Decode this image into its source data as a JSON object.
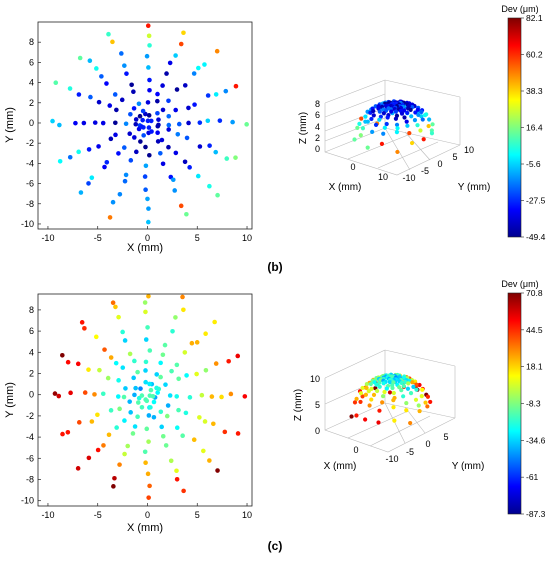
{
  "colors": {
    "jet": [
      "#00008f",
      "#0000ff",
      "#007fff",
      "#00ffff",
      "#7fff7f",
      "#ffff00",
      "#ff7f00",
      "#ff0000",
      "#7f0000"
    ]
  },
  "chart_data": [
    {
      "id": "b",
      "panel_label": "(b)",
      "type": "scatter",
      "title": "",
      "xlabel": "X (mm)",
      "ylabel": "Y (mm)",
      "xlim": [
        -11,
        10.5
      ],
      "ylim": [
        -10.5,
        10
      ],
      "xticks": [
        "-10",
        "-5",
        "0",
        "5",
        "10"
      ],
      "yticks": [
        "-10",
        "-8",
        "-6",
        "-4",
        "-2",
        "0",
        "2",
        "4",
        "6",
        "8"
      ],
      "grid": false,
      "colorbar": {
        "title": "Dev (μm)",
        "range": [
          -49.4,
          82.1
        ],
        "ticks": [
          "82.1",
          "60.2",
          "38.3",
          "16.4",
          "-5.6",
          "-27.5",
          "-49.4"
        ]
      },
      "iso_view": {
        "type": "scatter3d",
        "xlabel": "X (mm)",
        "ylabel": "Y (mm)",
        "zlabel": "Z (mm)",
        "xticks": [
          "0",
          "10"
        ],
        "yticks": [
          "-10",
          "-5",
          "0",
          "5",
          "10"
        ],
        "zticks": [
          "0",
          "2",
          "4",
          "6",
          "8"
        ]
      },
      "pattern": "dome with points along 16 radial meridians; deviations mostly low (blue/cyan) in the interior, higher (green-red) near the rim"
    },
    {
      "id": "c",
      "panel_label": "(c)",
      "type": "scatter",
      "title": "",
      "xlabel": "X (mm)",
      "ylabel": "Y (mm)",
      "xlim": [
        -11,
        10.5
      ],
      "ylim": [
        -10.5,
        9.5
      ],
      "xticks": [
        "-10",
        "-5",
        "0",
        "5",
        "10"
      ],
      "yticks": [
        "-10",
        "-8",
        "-6",
        "-4",
        "-2",
        "0",
        "2",
        "4",
        "6",
        "8"
      ],
      "grid": false,
      "colorbar": {
        "title": "Dev (μm)",
        "range": [
          -87.3,
          70.8
        ],
        "ticks": [
          "70.8",
          "44.5",
          "18.1",
          "-8.3",
          "-34.6",
          "-61",
          "-87.3"
        ]
      },
      "iso_view": {
        "type": "scatter3d",
        "xlabel": "X (mm)",
        "ylabel": "Y (mm)",
        "zlabel": "Z (mm)",
        "xticks": [
          "0"
        ],
        "yticks": [
          "-10",
          "-5",
          "0",
          "5"
        ],
        "zticks": [
          "0",
          "5",
          "10"
        ]
      },
      "pattern": "dome with points along 16 radial meridians; deviations highest (orange/red) toward the outer rim, mid (cyan/green) near the center"
    }
  ]
}
